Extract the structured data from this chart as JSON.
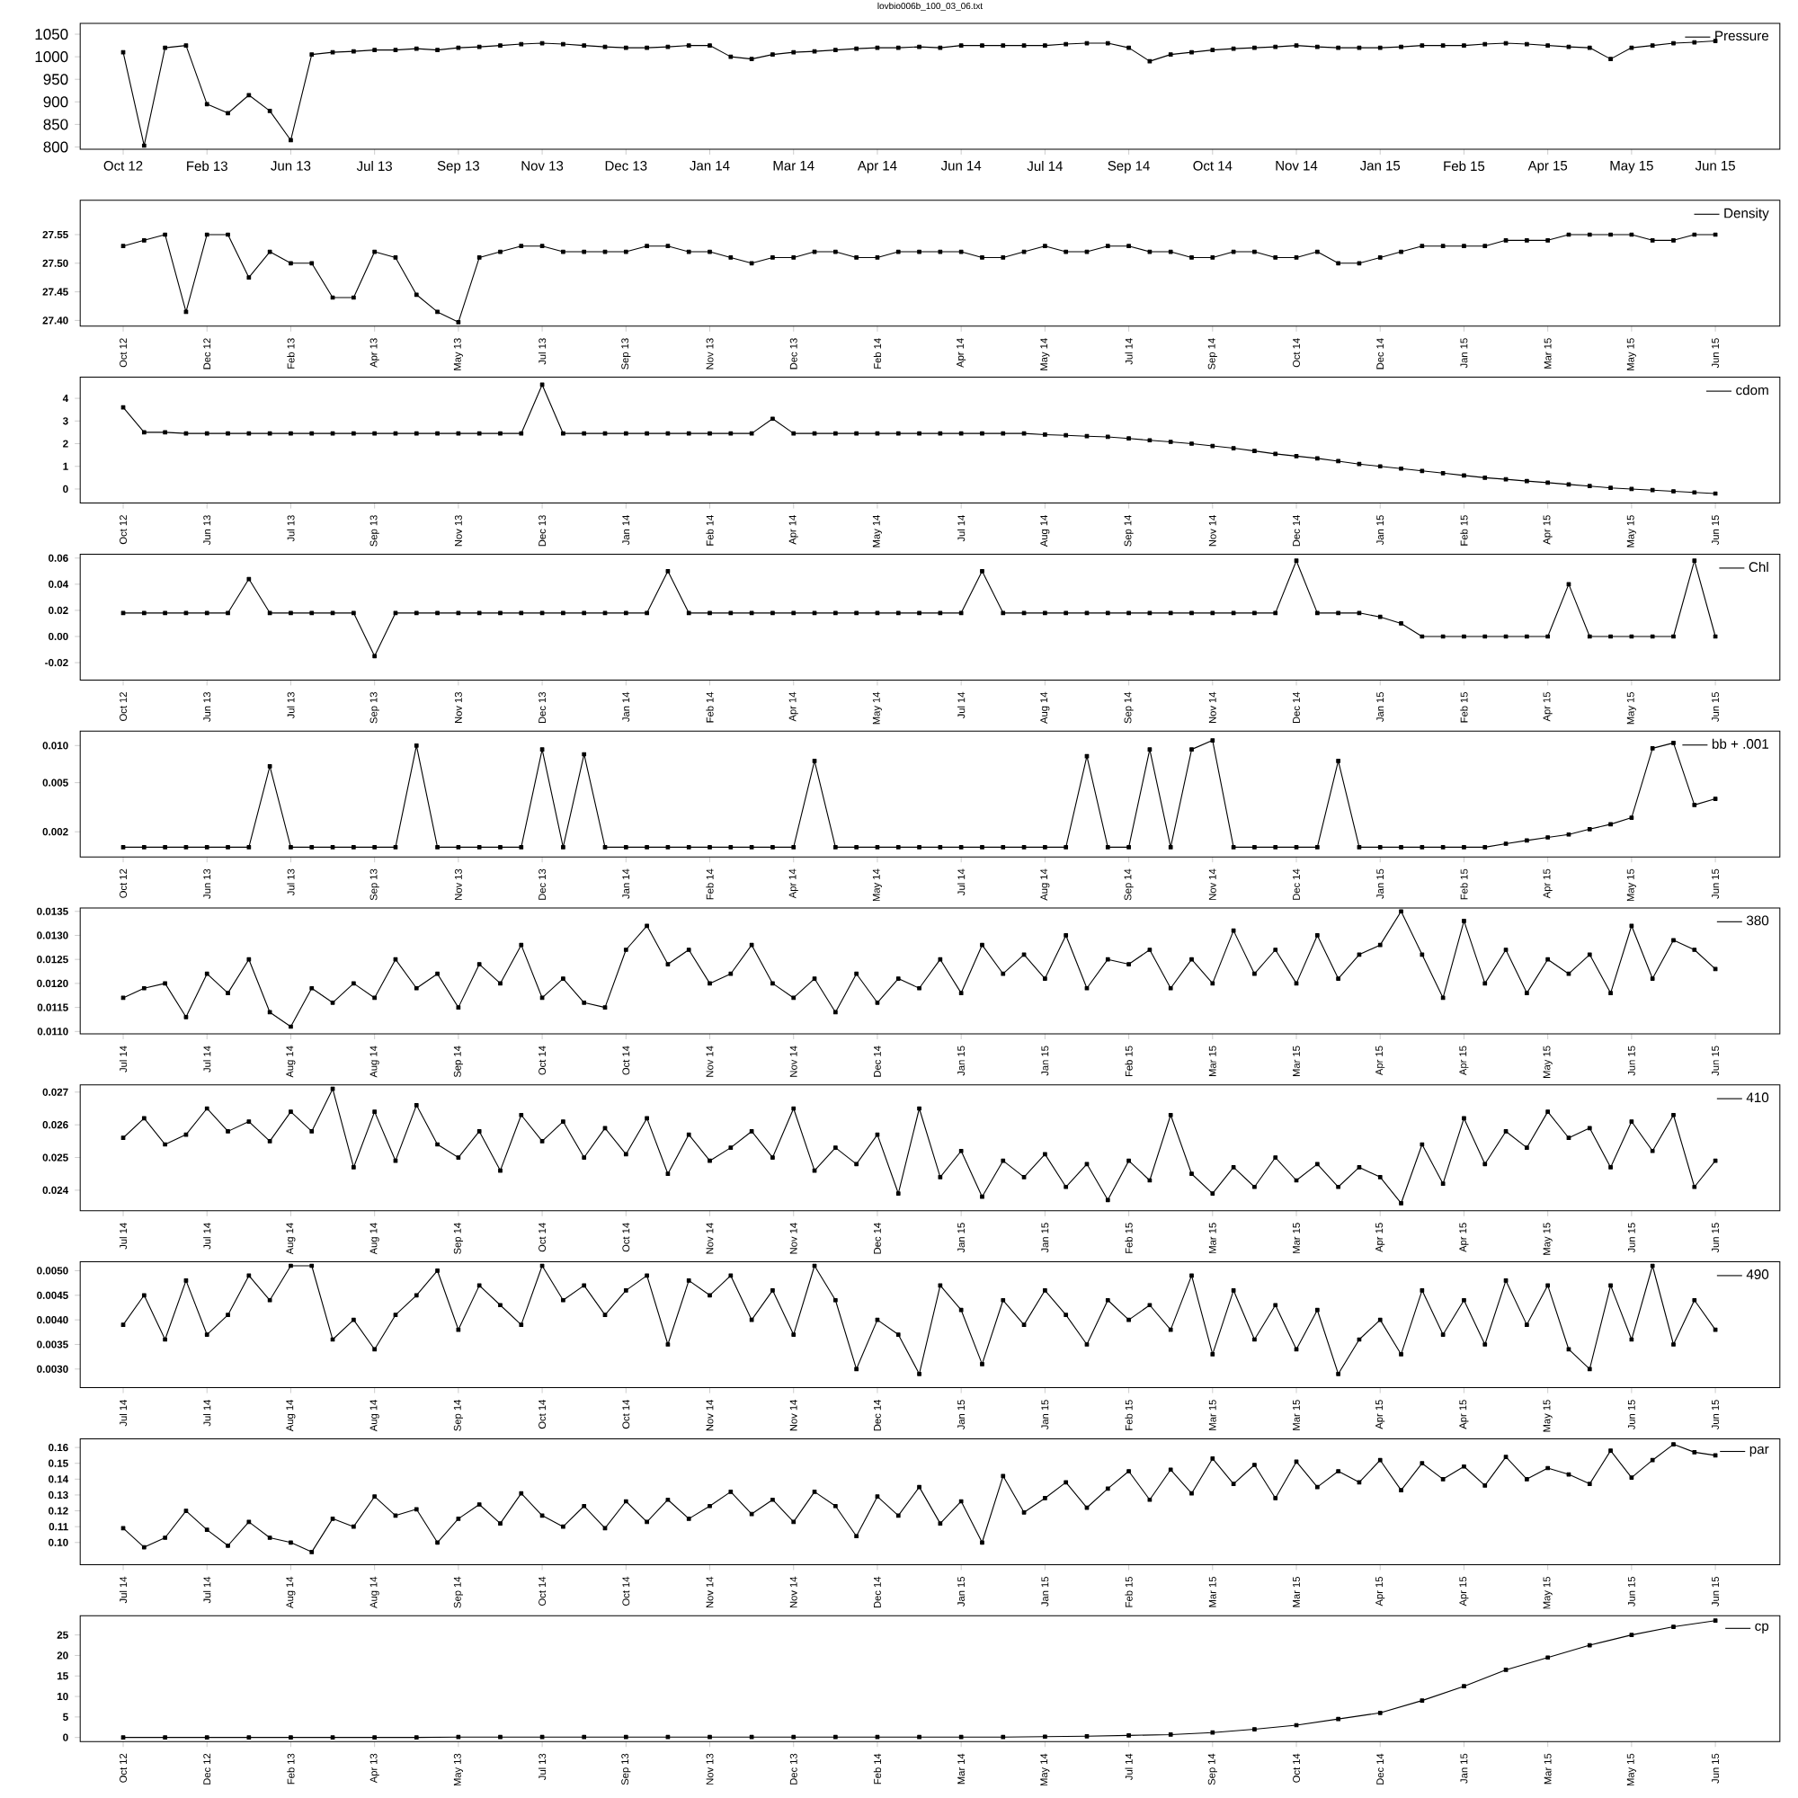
{
  "chart_data": [
    {
      "type": "line",
      "title": "lovbio006b_100_03_06.txt",
      "legend": "top right",
      "marker": "square",
      "categories": [
        "Oct 12",
        null,
        null,
        null,
        "Feb 13",
        null,
        null,
        null,
        "Jun 13",
        null,
        null,
        null,
        "Jul 13",
        null,
        null,
        null,
        "Sep 13",
        null,
        null,
        null,
        "Nov 13",
        null,
        null,
        null,
        "Dec 13",
        null,
        null,
        null,
        "Jan 14",
        null,
        null,
        null,
        "Mar 14",
        null,
        null,
        null,
        "Apr 14",
        null,
        null,
        null,
        "Jun 14",
        null,
        null,
        null,
        "Jul 14",
        null,
        null,
        null,
        "Sep 14",
        null,
        null,
        null,
        "Oct 14",
        null,
        null,
        null,
        "Nov 14",
        null,
        null,
        null,
        "Jan 15",
        null,
        null,
        null,
        "Feb 15",
        null,
        null,
        null,
        "Apr 15",
        null,
        null,
        null,
        "May 15",
        null,
        null,
        null,
        "Jun 15"
      ],
      "ylim": [
        795,
        1074
      ],
      "yticks": [
        800,
        850,
        900,
        950,
        1000,
        1050
      ],
      "series": [
        {
          "name": "Pressure",
          "color": "#000000",
          "values": [
            1010,
            803,
            1020,
            1025,
            895,
            875,
            915,
            880,
            815,
            1005,
            1010,
            1012,
            1015,
            1015,
            1018,
            1015,
            1020,
            1022,
            1025,
            1028,
            1030,
            1028,
            1025,
            1022,
            1020,
            1020,
            1022,
            1025,
            1025,
            1000,
            995,
            1005,
            1010,
            1012,
            1015,
            1018,
            1020,
            1020,
            1022,
            1020,
            1025,
            1025,
            1025,
            1025,
            1025,
            1028,
            1030,
            1030,
            1020,
            990,
            1005,
            1010,
            1015,
            1018,
            1020,
            1022,
            1025,
            1022,
            1020,
            1020,
            1020,
            1022,
            1025,
            1025,
            1025,
            1028,
            1030,
            1028,
            1025,
            1022,
            1020,
            995,
            1020,
            1025,
            1030,
            1032,
            1035
          ]
        }
      ]
    },
    {
      "type": "line",
      "legend": "top right",
      "marker": "square",
      "categories": [
        "Oct 12",
        null,
        null,
        null,
        "Dec 12",
        null,
        null,
        null,
        "Feb 13",
        null,
        null,
        null,
        "Apr 13",
        null,
        null,
        null,
        "May 13",
        null,
        null,
        null,
        "Jul 13",
        null,
        null,
        null,
        "Sep 13",
        null,
        null,
        null,
        "Nov 13",
        null,
        null,
        null,
        "Dec 13",
        null,
        null,
        null,
        "Feb 14",
        null,
        null,
        null,
        "Apr 14",
        null,
        null,
        null,
        "May 14",
        null,
        null,
        null,
        "Jul 14",
        null,
        null,
        null,
        "Sep 14",
        null,
        null,
        null,
        "Oct 14",
        null,
        null,
        null,
        "Dec 14",
        null,
        null,
        null,
        "Jan 15",
        null,
        null,
        null,
        "Mar 15",
        null,
        null,
        null,
        "May 15",
        null,
        null,
        null,
        "Jun 15"
      ],
      "ylim": [
        27.39,
        27.61
      ],
      "yticks": [
        {
          "value": 27.4,
          "label": "27.40"
        },
        {
          "value": 27.45,
          "label": "27.45"
        },
        {
          "value": 27.5,
          "label": "27.50"
        },
        {
          "value": 27.55,
          "label": "27.55"
        }
      ],
      "series": [
        {
          "name": "Density",
          "color": "#000000",
          "values": [
            27.53,
            27.54,
            27.55,
            27.415,
            27.55,
            27.55,
            27.475,
            27.52,
            27.5,
            27.5,
            27.44,
            27.44,
            27.52,
            27.51,
            27.445,
            27.415,
            27.397,
            27.51,
            27.52,
            27.53,
            27.53,
            27.52,
            27.52,
            27.52,
            27.52,
            27.53,
            27.53,
            27.52,
            27.52,
            27.51,
            27.5,
            27.51,
            27.51,
            27.52,
            27.52,
            27.51,
            27.51,
            27.52,
            27.52,
            27.52,
            27.52,
            27.51,
            27.51,
            27.52,
            27.53,
            27.52,
            27.52,
            27.53,
            27.53,
            27.52,
            27.52,
            27.51,
            27.51,
            27.52,
            27.52,
            27.51,
            27.51,
            27.52,
            27.5,
            27.5,
            27.51,
            27.52,
            27.53,
            27.53,
            27.53,
            27.53,
            27.54,
            27.54,
            27.54,
            27.55,
            27.55,
            27.55,
            27.55,
            27.54,
            27.54,
            27.55,
            27.55
          ]
        }
      ]
    },
    {
      "type": "line",
      "legend": "top right",
      "marker": "square",
      "categories": [
        "Oct 12",
        null,
        null,
        null,
        "Jun 13",
        null,
        null,
        null,
        "Jul 13",
        null,
        null,
        null,
        "Sep 13",
        null,
        null,
        null,
        "Nov 13",
        null,
        null,
        null,
        "Dec 13",
        null,
        null,
        null,
        "Jan 14",
        null,
        null,
        null,
        "Feb 14",
        null,
        null,
        null,
        "Apr 14",
        null,
        null,
        null,
        "May 14",
        null,
        null,
        null,
        "Jul 14",
        null,
        null,
        null,
        "Aug 14",
        null,
        null,
        null,
        "Sep 14",
        null,
        null,
        null,
        "Nov 14",
        null,
        null,
        null,
        "Dec 14",
        null,
        null,
        null,
        "Jan 15",
        null,
        null,
        null,
        "Feb 15",
        null,
        null,
        null,
        "Apr 15",
        null,
        null,
        null,
        "May 15",
        null,
        null,
        null,
        "Jun 15"
      ],
      "ylim": [
        -0.62,
        4.93
      ],
      "yticks": [
        0,
        1,
        2,
        3,
        4
      ],
      "series": [
        {
          "name": "cdom",
          "color": "#000000",
          "values": [
            3.6,
            2.5,
            2.5,
            2.45,
            2.45,
            2.45,
            2.45,
            2.45,
            2.45,
            2.45,
            2.45,
            2.45,
            2.45,
            2.45,
            2.45,
            2.45,
            2.45,
            2.45,
            2.45,
            2.45,
            4.6,
            2.45,
            2.45,
            2.45,
            2.45,
            2.45,
            2.45,
            2.45,
            2.45,
            2.45,
            2.45,
            3.1,
            2.45,
            2.45,
            2.45,
            2.45,
            2.45,
            2.45,
            2.45,
            2.45,
            2.45,
            2.45,
            2.45,
            2.45,
            2.4,
            2.37,
            2.33,
            2.3,
            2.23,
            2.15,
            2.08,
            2.0,
            1.9,
            1.8,
            1.68,
            1.55,
            1.45,
            1.35,
            1.23,
            1.1,
            1.0,
            0.9,
            0.8,
            0.7,
            0.6,
            0.5,
            0.43,
            0.35,
            0.28,
            0.2,
            0.13,
            0.05,
            0,
            -0.05,
            -0.1,
            -0.15,
            -0.2
          ]
        }
      ]
    },
    {
      "type": "line",
      "legend": "top right",
      "marker": "square",
      "categories": [
        "Oct 12",
        null,
        null,
        null,
        "Jun 13",
        null,
        null,
        null,
        "Jul 13",
        null,
        null,
        null,
        "Sep 13",
        null,
        null,
        null,
        "Nov 13",
        null,
        null,
        null,
        "Dec 13",
        null,
        null,
        null,
        "Jan 14",
        null,
        null,
        null,
        "Feb 14",
        null,
        null,
        null,
        "Apr 14",
        null,
        null,
        null,
        "May 14",
        null,
        null,
        null,
        "Jul 14",
        null,
        null,
        null,
        "Aug 14",
        null,
        null,
        null,
        "Sep 14",
        null,
        null,
        null,
        "Nov 14",
        null,
        null,
        null,
        "Dec 14",
        null,
        null,
        null,
        "Jan 15",
        null,
        null,
        null,
        "Feb 15",
        null,
        null,
        null,
        "Apr 15",
        null,
        null,
        null,
        "May 15",
        null,
        null,
        null,
        "Jun 15"
      ],
      "ylim": [
        -0.0333,
        0.063
      ],
      "yticks": [
        {
          "value": -0.02,
          "label": "-0.02"
        },
        {
          "value": 0,
          "label": "0.00"
        },
        {
          "value": 0.02,
          "label": "0.02"
        },
        {
          "value": 0.04,
          "label": "0.04"
        },
        {
          "value": 0.06,
          "label": "0.06"
        }
      ],
      "series": [
        {
          "name": "Chl",
          "color": "#000000",
          "values": [
            0.018,
            0.018,
            0.018,
            0.018,
            0.018,
            0.018,
            0.044,
            0.018,
            0.018,
            0.018,
            0.018,
            0.018,
            -0.015,
            0.018,
            0.018,
            0.018,
            0.018,
            0.018,
            0.018,
            0.018,
            0.018,
            0.018,
            0.018,
            0.018,
            0.018,
            0.018,
            0.05,
            0.018,
            0.018,
            0.018,
            0.018,
            0.018,
            0.018,
            0.018,
            0.018,
            0.018,
            0.018,
            0.018,
            0.018,
            0.018,
            0.018,
            0.05,
            0.018,
            0.018,
            0.018,
            0.018,
            0.018,
            0.018,
            0.018,
            0.018,
            0.018,
            0.018,
            0.018,
            0.018,
            0.018,
            0.018,
            0.058,
            0.018,
            0.018,
            0.018,
            0.015,
            0.01,
            0.0,
            0.0,
            0.0,
            0.0,
            0.0,
            0.0,
            0.0,
            0.04,
            0.0,
            0.0,
            0.0,
            0.0,
            0.0,
            0.058,
            0.0
          ]
        }
      ]
    },
    {
      "type": "line",
      "legend": "top right",
      "marker": "square",
      "log": "y",
      "categories": [
        "Oct 12",
        null,
        null,
        null,
        "Jun 13",
        null,
        null,
        null,
        "Jul 13",
        null,
        null,
        null,
        "Sep 13",
        null,
        null,
        null,
        "Nov 13",
        null,
        null,
        null,
        "Dec 13",
        null,
        null,
        null,
        "Jan 14",
        null,
        null,
        null,
        "Feb 14",
        null,
        null,
        null,
        "Apr 14",
        null,
        null,
        null,
        "May 14",
        null,
        null,
        null,
        "Jul 14",
        null,
        null,
        null,
        "Aug 14",
        null,
        null,
        null,
        "Sep 14",
        null,
        null,
        null,
        "Nov 14",
        null,
        null,
        null,
        "Dec 14",
        null,
        null,
        null,
        "Jan 15",
        null,
        null,
        null,
        "Feb 15",
        null,
        null,
        null,
        "Apr 15",
        null,
        null,
        null,
        "May 15",
        null,
        null,
        null,
        "Jun 15"
      ],
      "ylim": [
        0.00125,
        0.0131
      ],
      "yticks": [
        {
          "value": 0.002,
          "label": "0.002"
        },
        {
          "value": 0.005,
          "label": "0.005"
        },
        {
          "value": 0.01,
          "label": "0.010"
        }
      ],
      "series": [
        {
          "name": "bb + .001",
          "color": "#000000",
          "values": [
            0.0015,
            0.0015,
            0.0015,
            0.0015,
            0.0015,
            0.0015,
            0.0015,
            0.0068,
            0.0015,
            0.0015,
            0.0015,
            0.0015,
            0.0015,
            0.0015,
            0.01,
            0.0015,
            0.0015,
            0.0015,
            0.0015,
            0.0015,
            0.0093,
            0.0015,
            0.0085,
            0.0015,
            0.0015,
            0.0015,
            0.0015,
            0.0015,
            0.0015,
            0.0015,
            0.0015,
            0.0015,
            0.0015,
            0.0075,
            0.0015,
            0.0015,
            0.0015,
            0.0015,
            0.0015,
            0.0015,
            0.0015,
            0.0015,
            0.0015,
            0.0015,
            0.0015,
            0.0015,
            0.0082,
            0.0015,
            0.0015,
            0.0093,
            0.0015,
            0.0093,
            0.011,
            0.0015,
            0.0015,
            0.0015,
            0.0015,
            0.0015,
            0.0075,
            0.0015,
            0.0015,
            0.0015,
            0.0015,
            0.0015,
            0.0015,
            0.0015,
            0.0016,
            0.0017,
            0.0018,
            0.0019,
            0.0021,
            0.0023,
            0.0026,
            0.0095,
            0.0105,
            0.0033,
            0.0037
          ]
        }
      ]
    },
    {
      "type": "line",
      "legend": "top right",
      "marker": "square",
      "categories": [
        "Jul 14",
        null,
        null,
        null,
        "Jul 14",
        null,
        null,
        null,
        "Aug 14",
        null,
        null,
        null,
        "Aug 14",
        null,
        null,
        null,
        "Sep 14",
        null,
        null,
        null,
        "Oct 14",
        null,
        null,
        null,
        "Oct 14",
        null,
        null,
        null,
        "Nov 14",
        null,
        null,
        null,
        "Nov 14",
        null,
        null,
        null,
        "Dec 14",
        null,
        null,
        null,
        "Jan 15",
        null,
        null,
        null,
        "Jan 15",
        null,
        null,
        null,
        "Feb 15",
        null,
        null,
        null,
        "Mar 15",
        null,
        null,
        null,
        "Mar 15",
        null,
        null,
        null,
        "Apr 15",
        null,
        null,
        null,
        "Apr 15",
        null,
        null,
        null,
        "May 15",
        null,
        null,
        null,
        "Jun 15",
        null,
        null,
        null,
        "Jun 15"
      ],
      "ylim": [
        0.01095,
        0.01357
      ],
      "yticks": [
        {
          "value": 0.011,
          "label": "0.0110"
        },
        {
          "value": 0.0115,
          "label": "0.0115"
        },
        {
          "value": 0.012,
          "label": "0.0120"
        },
        {
          "value": 0.0125,
          "label": "0.0125"
        },
        {
          "value": 0.013,
          "label": "0.0130"
        },
        {
          "value": 0.0135,
          "label": "0.0135"
        }
      ],
      "series": [
        {
          "name": "380",
          "color": "#000000",
          "values": [
            0.0117,
            0.0119,
            0.012,
            0.0113,
            0.0122,
            0.0118,
            0.0125,
            0.0114,
            0.0111,
            0.0119,
            0.0116,
            0.012,
            0.0117,
            0.0125,
            0.0119,
            0.0122,
            0.0115,
            0.0124,
            0.012,
            0.0128,
            0.0117,
            0.0121,
            0.0116,
            0.0115,
            0.0127,
            0.0132,
            0.0124,
            0.0127,
            0.012,
            0.0122,
            0.0128,
            0.012,
            0.0117,
            0.0121,
            0.0114,
            0.0122,
            0.0116,
            0.0121,
            0.0119,
            0.0125,
            0.0118,
            0.0128,
            0.0122,
            0.0126,
            0.0121,
            0.013,
            0.0119,
            0.0125,
            0.0124,
            0.0127,
            0.0119,
            0.0125,
            0.012,
            0.0131,
            0.0122,
            0.0127,
            0.012,
            0.013,
            0.0121,
            0.0126,
            0.0128,
            0.0135,
            0.0126,
            0.0117,
            0.0133,
            0.012,
            0.0127,
            0.0118,
            0.0125,
            0.0122,
            0.0126,
            0.0118,
            0.0132,
            0.0121,
            0.0129,
            0.0127,
            0.0123
          ]
        }
      ]
    },
    {
      "type": "line",
      "legend": "top right",
      "marker": "square",
      "categories": [
        "Jul 14",
        null,
        null,
        null,
        "Jul 14",
        null,
        null,
        null,
        "Aug 14",
        null,
        null,
        null,
        "Aug 14",
        null,
        null,
        null,
        "Sep 14",
        null,
        null,
        null,
        "Oct 14",
        null,
        null,
        null,
        "Oct 14",
        null,
        null,
        null,
        "Nov 14",
        null,
        null,
        null,
        "Nov 14",
        null,
        null,
        null,
        "Dec 14",
        null,
        null,
        null,
        "Jan 15",
        null,
        null,
        null,
        "Jan 15",
        null,
        null,
        null,
        "Feb 15",
        null,
        null,
        null,
        "Mar 15",
        null,
        null,
        null,
        "Mar 15",
        null,
        null,
        null,
        "Apr 15",
        null,
        null,
        null,
        "Apr 15",
        null,
        null,
        null,
        "May 15",
        null,
        null,
        null,
        "Jun 15",
        null,
        null,
        null,
        "Jun 15"
      ],
      "ylim": [
        0.02337,
        0.02722
      ],
      "yticks": [
        0.024,
        0.025,
        0.026,
        0.027
      ],
      "series": [
        {
          "name": "410",
          "color": "#000000",
          "values": [
            0.0256,
            0.0262,
            0.0254,
            0.0257,
            0.0265,
            0.0258,
            0.0261,
            0.0255,
            0.0264,
            0.0258,
            0.0271,
            0.0247,
            0.0264,
            0.0249,
            0.0266,
            0.0254,
            0.025,
            0.0258,
            0.0246,
            0.0263,
            0.0255,
            0.0261,
            0.025,
            0.0259,
            0.0251,
            0.0262,
            0.0245,
            0.0257,
            0.0249,
            0.0253,
            0.0258,
            0.025,
            0.0265,
            0.0246,
            0.0253,
            0.0248,
            0.0257,
            0.0239,
            0.0265,
            0.0244,
            0.0252,
            0.0238,
            0.0249,
            0.0244,
            0.0251,
            0.0241,
            0.0248,
            0.0237,
            0.0249,
            0.0243,
            0.0263,
            0.0245,
            0.0239,
            0.0247,
            0.0241,
            0.025,
            0.0243,
            0.0248,
            0.0241,
            0.0247,
            0.0244,
            0.0236,
            0.0254,
            0.0242,
            0.0262,
            0.0248,
            0.0258,
            0.0253,
            0.0264,
            0.0256,
            0.0259,
            0.0247,
            0.0261,
            0.0252,
            0.0263,
            0.0241,
            0.0249
          ]
        }
      ]
    },
    {
      "type": "line",
      "legend": "top right",
      "marker": "square",
      "categories": [
        "Jul 14",
        null,
        null,
        null,
        "Jul 14",
        null,
        null,
        null,
        "Aug 14",
        null,
        null,
        null,
        "Aug 14",
        null,
        null,
        null,
        "Sep 14",
        null,
        null,
        null,
        "Oct 14",
        null,
        null,
        null,
        "Oct 14",
        null,
        null,
        null,
        "Nov 14",
        null,
        null,
        null,
        "Nov 14",
        null,
        null,
        null,
        "Dec 14",
        null,
        null,
        null,
        "Jan 15",
        null,
        null,
        null,
        "Jan 15",
        null,
        null,
        null,
        "Feb 15",
        null,
        null,
        null,
        "Mar 15",
        null,
        null,
        null,
        "Mar 15",
        null,
        null,
        null,
        "Apr 15",
        null,
        null,
        null,
        "Apr 15",
        null,
        null,
        null,
        "May 15",
        null,
        null,
        null,
        "Jun 15",
        null,
        null,
        null,
        "Jun 15"
      ],
      "ylim": [
        0.00262,
        0.00518
      ],
      "yticks": [
        {
          "value": 0.003,
          "label": "0.0030"
        },
        {
          "value": 0.0035,
          "label": "0.0035"
        },
        {
          "value": 0.004,
          "label": "0.0040"
        },
        {
          "value": 0.0045,
          "label": "0.0045"
        },
        {
          "value": 0.005,
          "label": "0.0050"
        }
      ],
      "series": [
        {
          "name": "490",
          "color": "#000000",
          "values": [
            0.0039,
            0.0045,
            0.0036,
            0.0048,
            0.0037,
            0.0041,
            0.0049,
            0.0044,
            0.0051,
            0.0051,
            0.0036,
            0.004,
            0.0034,
            0.0041,
            0.0045,
            0.005,
            0.0038,
            0.0047,
            0.0043,
            0.0039,
            0.0051,
            0.0044,
            0.0047,
            0.0041,
            0.0046,
            0.0049,
            0.0035,
            0.0048,
            0.0045,
            0.0049,
            0.004,
            0.0046,
            0.0037,
            0.0051,
            0.0044,
            0.003,
            0.004,
            0.0037,
            0.0029,
            0.0047,
            0.0042,
            0.0031,
            0.0044,
            0.0039,
            0.0046,
            0.0041,
            0.0035,
            0.0044,
            0.004,
            0.0043,
            0.0038,
            0.0049,
            0.0033,
            0.0046,
            0.0036,
            0.0043,
            0.0034,
            0.0042,
            0.0029,
            0.0036,
            0.004,
            0.0033,
            0.0046,
            0.0037,
            0.0044,
            0.0035,
            0.0048,
            0.0039,
            0.0047,
            0.0034,
            0.003,
            0.0047,
            0.0036,
            0.0051,
            0.0035,
            0.0044,
            0.0038
          ]
        }
      ]
    },
    {
      "type": "line",
      "legend": "top right",
      "marker": "square",
      "categories": [
        "Jul 14",
        null,
        null,
        null,
        "Jul 14",
        null,
        null,
        null,
        "Aug 14",
        null,
        null,
        null,
        "Aug 14",
        null,
        null,
        null,
        "Sep 14",
        null,
        null,
        null,
        "Oct 14",
        null,
        null,
        null,
        "Oct 14",
        null,
        null,
        null,
        "Nov 14",
        null,
        null,
        null,
        "Nov 14",
        null,
        null,
        null,
        "Dec 14",
        null,
        null,
        null,
        "Jan 15",
        null,
        null,
        null,
        "Jan 15",
        null,
        null,
        null,
        "Feb 15",
        null,
        null,
        null,
        "Mar 15",
        null,
        null,
        null,
        "Mar 15",
        null,
        null,
        null,
        "Apr 15",
        null,
        null,
        null,
        "Apr 15",
        null,
        null,
        null,
        "May 15",
        null,
        null,
        null,
        "Jun 15",
        null,
        null,
        null,
        "Jun 15"
      ],
      "ylim": [
        0.086,
        0.1655
      ],
      "yticks": [
        {
          "value": 0.1,
          "label": "0.10"
        },
        {
          "value": 0.11,
          "label": "0.11"
        },
        {
          "value": 0.12,
          "label": "0.12"
        },
        {
          "value": 0.13,
          "label": "0.13"
        },
        {
          "value": 0.14,
          "label": "0.14"
        },
        {
          "value": 0.15,
          "label": "0.15"
        },
        {
          "value": 0.16,
          "label": "0.16"
        }
      ],
      "series": [
        {
          "name": "par",
          "color": "#000000",
          "values": [
            0.109,
            0.097,
            0.103,
            0.12,
            0.108,
            0.098,
            0.113,
            0.103,
            0.1,
            0.094,
            0.115,
            0.11,
            0.129,
            0.117,
            0.121,
            0.1,
            0.115,
            0.124,
            0.112,
            0.131,
            0.117,
            0.11,
            0.123,
            0.109,
            0.126,
            0.113,
            0.127,
            0.115,
            0.123,
            0.132,
            0.118,
            0.127,
            0.113,
            0.132,
            0.123,
            0.104,
            0.129,
            0.117,
            0.135,
            0.112,
            0.126,
            0.1,
            0.142,
            0.119,
            0.128,
            0.138,
            0.122,
            0.134,
            0.145,
            0.127,
            0.146,
            0.131,
            0.153,
            0.137,
            0.149,
            0.128,
            0.151,
            0.135,
            0.145,
            0.138,
            0.152,
            0.133,
            0.15,
            0.14,
            0.148,
            0.136,
            0.154,
            0.14,
            0.147,
            0.143,
            0.137,
            0.158,
            0.141,
            0.152,
            0.162,
            0.157,
            0.155
          ]
        }
      ]
    },
    {
      "type": "line",
      "legend": "top right",
      "marker": "square",
      "categories": [
        "Oct 12",
        null,
        "Dec 12",
        null,
        "Feb 13",
        null,
        "Apr 13",
        null,
        "May 13",
        null,
        "Jul 13",
        null,
        "Sep 13",
        null,
        "Nov 13",
        null,
        "Dec 13",
        null,
        "Feb 14",
        null,
        "Mar 14",
        null,
        "May 14",
        null,
        "Jul 14",
        null,
        "Sep 14",
        null,
        "Oct 14",
        null,
        "Dec 14",
        null,
        "Jan 15",
        null,
        "Mar 15",
        null,
        "May 15",
        null,
        "Jun 15"
      ],
      "ylim": [
        -1,
        29.7
      ],
      "yticks": [
        0,
        5,
        10,
        15,
        20,
        25
      ],
      "series": [
        {
          "name": "cp",
          "color": "#000000",
          "values": [
            0,
            0,
            0,
            0,
            0,
            0,
            0,
            0,
            0.1,
            0.1,
            0.1,
            0.1,
            0.1,
            0.1,
            0.1,
            0.1,
            0.1,
            0.1,
            0.1,
            0.1,
            0.1,
            0.1,
            0.2,
            0.3,
            0.5,
            0.7,
            1.2,
            2,
            3,
            4.5,
            6,
            9,
            12.5,
            16.5,
            19.5,
            22.5,
            25,
            27,
            28.5
          ]
        }
      ]
    }
  ]
}
